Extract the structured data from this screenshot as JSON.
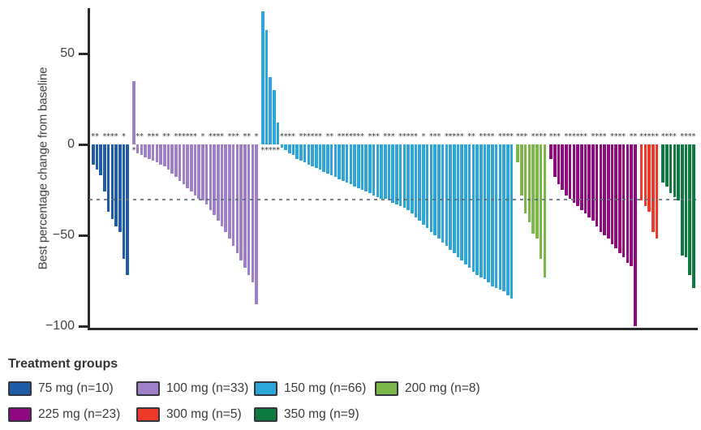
{
  "y_axis": {
    "title": "Best percentage change from baseline",
    "tick_labels": [
      "50",
      "0",
      "−50",
      "−100"
    ]
  },
  "legend": {
    "title": "Treatment groups",
    "items": [
      {
        "label": "75 mg  (n=10)",
        "color": "#1E5CA8",
        "row": 1,
        "col": 0
      },
      {
        "label": "100 mg (n=33)",
        "color": "#A07FC9",
        "row": 1,
        "col": 1
      },
      {
        "label": "150 mg (n=66)",
        "color": "#2BA6D6",
        "row": 1,
        "col": 2
      },
      {
        "label": "200 mg (n=8)",
        "color": "#7AB648",
        "row": 1,
        "col": 3
      },
      {
        "label": "225 mg (n=23)",
        "color": "#8F0880",
        "row": 2,
        "col": 0
      },
      {
        "label": "300 mg (n=5)",
        "color": "#EE3828",
        "row": 2,
        "col": 1
      },
      {
        "label": "350 mg (n=9)",
        "color": "#0F7A3F",
        "row": 2,
        "col": 2
      }
    ]
  },
  "chart_data": {
    "type": "bar",
    "subtype": "waterfall",
    "title": "",
    "xlabel": "",
    "ylabel": "Best percentage change from baseline",
    "ylim": [
      -100,
      75
    ],
    "y_ticks": [
      50,
      0,
      -50,
      -100
    ],
    "threshold_line": -30,
    "grid": false,
    "legend_position": "bottom",
    "annotation_note": "asterisks mark individual patients; shown above bars (below baseline for bars with positive change)",
    "groups": [
      {
        "name": "75 mg",
        "n": 10,
        "color": "#1E5CA8",
        "values": [
          -11,
          -14,
          -17,
          -26,
          -37,
          -41,
          -45,
          -48,
          -63,
          -72
        ],
        "stars": [
          1,
          1,
          0,
          1,
          1,
          1,
          1,
          0,
          1,
          0
        ]
      },
      {
        "name": "100 mg",
        "n": 33,
        "color": "#A07FC9",
        "values": [
          35,
          -5,
          -6,
          -7,
          -8,
          -9,
          -10,
          -11,
          -12,
          -14,
          -16,
          -18,
          -20,
          -22,
          -24,
          -26,
          -28,
          -30,
          -31,
          -33,
          -36,
          -39,
          -42,
          -45,
          -48,
          -52,
          -56,
          -60,
          -64,
          -68,
          -72,
          -76,
          -88
        ],
        "stars": [
          1,
          1,
          1,
          0,
          1,
          1,
          1,
          0,
          1,
          1,
          0,
          1,
          1,
          1,
          1,
          1,
          1,
          0,
          1,
          0,
          1,
          1,
          1,
          1,
          0,
          1,
          1,
          1,
          0,
          1,
          1,
          0,
          1
        ]
      },
      {
        "name": "150 mg",
        "n": 66,
        "color": "#2BA6D6",
        "values": [
          73,
          63,
          37,
          30,
          12,
          -2,
          -3,
          -5,
          -6,
          -8,
          -9,
          -10,
          -11,
          -12,
          -13,
          -14,
          -15,
          -16,
          -17,
          -18,
          -19,
          -20,
          -21,
          -22,
          -23,
          -24,
          -25,
          -26,
          -27,
          -28,
          -29,
          -30,
          -30,
          -31,
          -32,
          -33,
          -34,
          -35,
          -36,
          -38,
          -40,
          -42,
          -44,
          -46,
          -48,
          -50,
          -52,
          -54,
          -56,
          -58,
          -60,
          -62,
          -64,
          -66,
          -68,
          -70,
          -72,
          -73,
          -74,
          -76,
          -78,
          -79,
          -80,
          -81,
          -83,
          -85
        ],
        "stars": [
          1,
          1,
          1,
          1,
          1,
          1,
          1,
          1,
          1,
          0,
          1,
          1,
          1,
          1,
          1,
          1,
          0,
          1,
          1,
          0,
          1,
          1,
          1,
          1,
          1,
          1,
          1,
          0,
          1,
          1,
          1,
          0,
          1,
          1,
          1,
          0,
          1,
          1,
          1,
          1,
          1,
          0,
          1,
          0,
          1,
          1,
          1,
          0,
          1,
          1,
          1,
          1,
          1,
          0,
          1,
          1,
          0,
          1,
          1,
          1,
          1,
          0,
          1,
          1,
          1,
          1
        ]
      },
      {
        "name": "200 mg",
        "n": 8,
        "color": "#7AB648",
        "values": [
          -10,
          -28,
          -38,
          -43,
          -49,
          -52,
          -63,
          -73
        ],
        "stars": [
          1,
          1,
          1,
          0,
          1,
          1,
          1,
          1
        ]
      },
      {
        "name": "225 mg",
        "n": 23,
        "color": "#8F0880",
        "values": [
          -8,
          -18,
          -22,
          -25,
          -28,
          -30,
          -32,
          -34,
          -36,
          -38,
          -40,
          -42,
          -45,
          -48,
          -50,
          -52,
          -55,
          -57,
          -60,
          -62,
          -65,
          -67,
          -100
        ],
        "stars": [
          1,
          1,
          1,
          0,
          1,
          1,
          1,
          1,
          1,
          1,
          0,
          1,
          1,
          1,
          1,
          0,
          1,
          1,
          1,
          1,
          0,
          1,
          1
        ]
      },
      {
        "name": "300 mg",
        "n": 5,
        "color": "#EE3828",
        "values": [
          -31,
          -34,
          -37,
          -48,
          -52
        ],
        "stars": [
          1,
          1,
          1,
          1,
          1
        ]
      },
      {
        "name": "350 mg",
        "n": 9,
        "color": "#0F7A3F",
        "values": [
          -21,
          -23,
          -27,
          -29,
          -31,
          -61,
          -62,
          -72,
          -79
        ],
        "stars": [
          1,
          1,
          1,
          1,
          0,
          1,
          1,
          1,
          1
        ]
      }
    ]
  }
}
